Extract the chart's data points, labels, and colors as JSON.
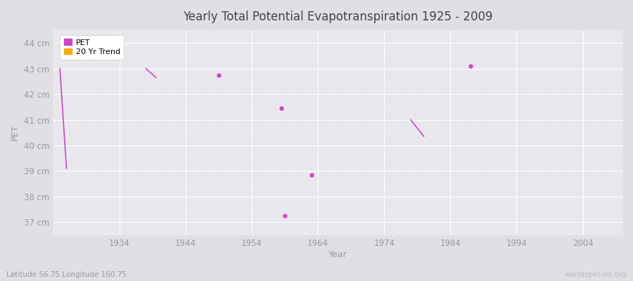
{
  "title": "Yearly Total Potential Evapotranspiration 1925 - 2009",
  "xlabel": "Year",
  "ylabel": "PET",
  "subtitle": "Latitude 56.75 Longitude 160.75",
  "watermark": "worldspecies.org",
  "ylim": [
    36.5,
    44.5
  ],
  "xlim": [
    1924,
    2010
  ],
  "yticks": [
    37,
    38,
    39,
    40,
    41,
    42,
    43,
    44
  ],
  "ytick_labels": [
    "37 cm",
    "38 cm",
    "39 cm",
    "40 cm",
    "41 cm",
    "42 cm",
    "43 cm",
    "44 cm"
  ],
  "xticks": [
    1934,
    1944,
    1954,
    1964,
    1974,
    1984,
    1994,
    2004
  ],
  "pet_color": "#cc44cc",
  "trend_color": "#ffaa00",
  "background_color": "#e0e0e4",
  "plot_bg_color": "#e8e8ec",
  "grid_major_color": "#ffffff",
  "grid_minor_color": "#f0f0f4",
  "pet_line_segments": [
    [
      [
        1925,
        43.0
      ],
      [
        1926,
        39.1
      ]
    ],
    [
      [
        1938,
        43.0
      ],
      [
        1939.5,
        42.65
      ]
    ],
    [
      [
        1978,
        41.0
      ],
      [
        1980,
        40.35
      ]
    ]
  ],
  "pet_point_segments": [
    [
      1949,
      42.75
    ],
    [
      1959,
      37.25
    ],
    [
      1958.5,
      41.45
    ],
    [
      1963,
      38.85
    ],
    [
      1987,
      43.1
    ]
  ]
}
